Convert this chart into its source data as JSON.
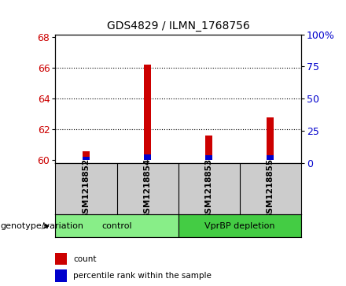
{
  "title": "GDS4829 / ILMN_1768756",
  "samples": [
    "GSM1218852",
    "GSM1218854",
    "GSM1218853",
    "GSM1218855"
  ],
  "groups": [
    {
      "label": "control",
      "indices": [
        0,
        1
      ],
      "color": "#88ee88"
    },
    {
      "label": "VprBP depletion",
      "indices": [
        2,
        3
      ],
      "color": "#44cc44"
    }
  ],
  "ylim_left": [
    59.8,
    68.2
  ],
  "ylim_right": [
    0,
    100
  ],
  "yticks_left": [
    60,
    62,
    64,
    66,
    68
  ],
  "yticks_right": [
    0,
    25,
    50,
    75,
    100
  ],
  "ybaseline": 60,
  "red_tops": [
    60.55,
    66.2,
    61.6,
    62.8
  ],
  "blue_tops": [
    60.22,
    60.35,
    60.32,
    60.3
  ],
  "red_color": "#cc0000",
  "blue_color": "#0000cc",
  "bar_width": 0.12,
  "legend_red": "count",
  "legend_blue": "percentile rank within the sample",
  "left_ycolor": "#cc0000",
  "right_ycolor": "#0000cc",
  "bg_plot": "#ffffff",
  "bg_label_row": "#cccccc",
  "genotype_label": "genotype/variation"
}
